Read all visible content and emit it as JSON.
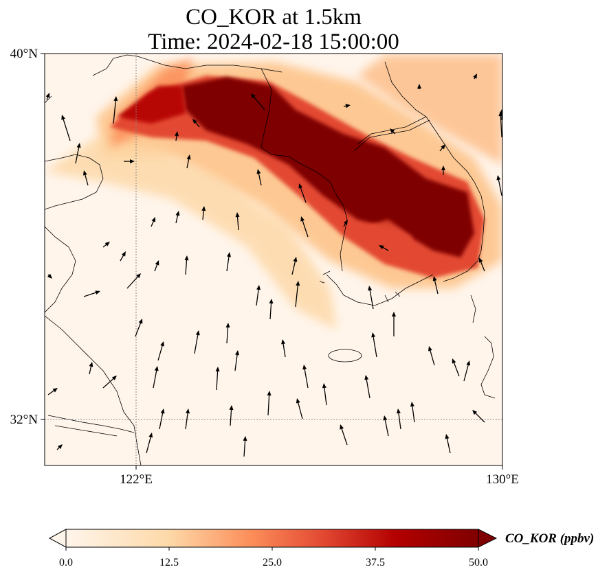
{
  "title": {
    "line1": "CO_KOR at 1.5km",
    "line2": "Time: 2024-02-18 15:00:00"
  },
  "map": {
    "lon_range": [
      118,
      130
    ],
    "lat_range": [
      31,
      40
    ],
    "x_ticks": [
      {
        "value": 122,
        "label": "122°E"
      },
      {
        "value": 130,
        "label": "130°E"
      }
    ],
    "y_ticks": [
      {
        "value": 40,
        "label": "40°N"
      },
      {
        "value": 32,
        "label": "32°N"
      }
    ],
    "gridlines": "dotted at 122°E and 32°N",
    "field": "CO_KOR",
    "plume_description_hidden": ""
  },
  "colorbar": {
    "label": "CO_KOR (ppbv)",
    "min": 0.0,
    "max": 50.0,
    "extend": "both",
    "ticks": [
      {
        "value": 0.0,
        "label": "0.0"
      },
      {
        "value": 12.5,
        "label": "12.5"
      },
      {
        "value": 25.0,
        "label": "25.0"
      },
      {
        "value": 37.5,
        "label": "37.5"
      },
      {
        "value": 50.0,
        "label": "50.0"
      }
    ],
    "colors": [
      "#fff5eb",
      "#fdd9a8",
      "#fc8d59",
      "#d7301f",
      "#b30000",
      "#7f0000"
    ]
  },
  "chart_data": {
    "type": "heatmap",
    "title": "CO_KOR at 1.5km\nTime: 2024-02-18 15:00:00",
    "xlabel": "",
    "ylabel": "",
    "xlim": [
      118,
      130
    ],
    "ylim": [
      31,
      40
    ],
    "value_range": [
      0,
      50
    ],
    "units": "ppbv",
    "plume_core": [
      {
        "lon": 123.5,
        "lat": 38.7,
        "value": 50
      },
      {
        "lon": 124.5,
        "lat": 38.6,
        "value": 50
      },
      {
        "lon": 125.5,
        "lat": 38.0,
        "value": 50
      },
      {
        "lon": 126.5,
        "lat": 37.6,
        "value": 50
      },
      {
        "lon": 127.3,
        "lat": 37.1,
        "value": 50
      },
      {
        "lon": 128.5,
        "lat": 36.6,
        "value": 50
      },
      {
        "lon": 129.0,
        "lat": 36.2,
        "value": 45
      },
      {
        "lon": 127.8,
        "lat": 36.3,
        "value": 40
      },
      {
        "lon": 121.0,
        "lat": 38.4,
        "value": 20
      },
      {
        "lon": 128.5,
        "lat": 39.5,
        "value": 20
      }
    ]
  }
}
